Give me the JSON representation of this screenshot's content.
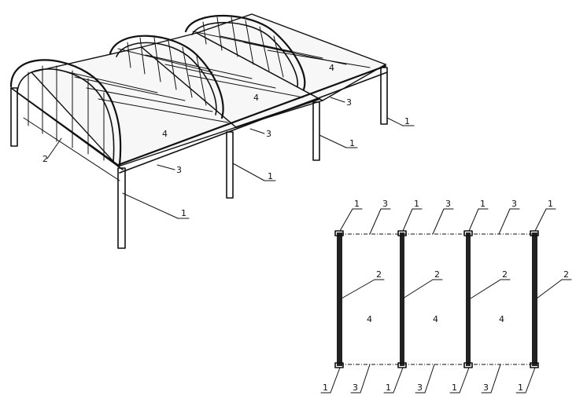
{
  "perspective": {
    "labels": {
      "leg_front_left": "1",
      "leg_front_mid": "1",
      "leg_back_mid": "1",
      "leg_back_right": "1",
      "side_frame": "2",
      "beam_front": "3",
      "beam_mid": "3",
      "beam_back": "3",
      "roof_a": "4",
      "roof_b": "4",
      "roof_c": "4"
    }
  },
  "plan": {
    "top_labels": [
      "1",
      "3",
      "1",
      "3",
      "1",
      "3",
      "1"
    ],
    "side_labels": [
      "2",
      "2",
      "2",
      "2"
    ],
    "bay_labels": [
      "4",
      "4",
      "4"
    ],
    "bottom_labels": [
      "1",
      "3",
      "1",
      "3",
      "1",
      "3",
      "1"
    ]
  }
}
